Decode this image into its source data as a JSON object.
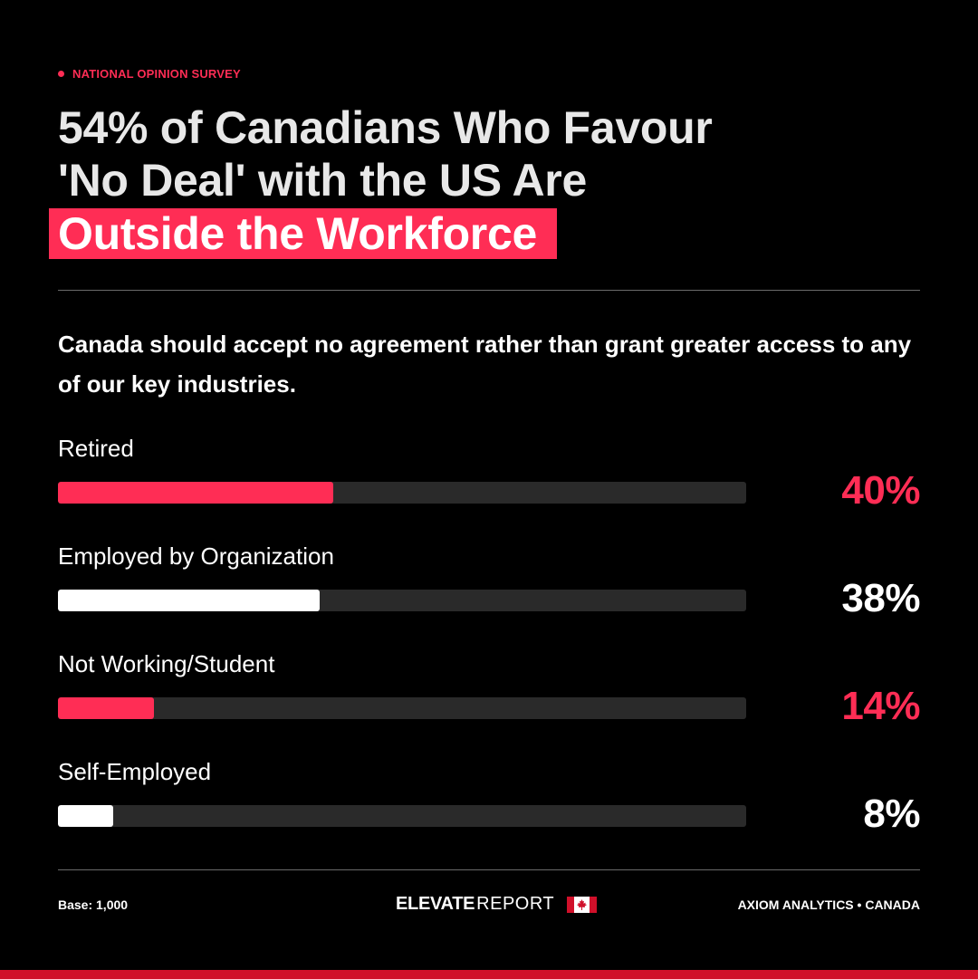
{
  "colors": {
    "accent": "#ff2d55",
    "white": "#ffffff",
    "track": "#2a2a2a",
    "stripe": "#d0102a"
  },
  "eyebrow": "NATIONAL OPINION SURVEY",
  "headline": {
    "line1": "54% of Canadians Who Favour",
    "line2": "'No Deal' with the US Are",
    "highlight": "Outside the Workforce"
  },
  "question": "Canada should accept no agreement rather than grant greater access to any of our key industries.",
  "chart_data": {
    "type": "bar",
    "orientation": "horizontal",
    "categories": [
      "Retired",
      "Employed by Organization",
      "Not Working/Student",
      "Self-Employed"
    ],
    "values": [
      40,
      38,
      14,
      8
    ],
    "value_labels": [
      "40%",
      "38%",
      "14%",
      "8%"
    ],
    "xlim": [
      0,
      100
    ],
    "bar_colors": [
      "#ff2d55",
      "#ffffff",
      "#ff2d55",
      "#ffffff"
    ],
    "grid": false
  },
  "footer": {
    "base": "Base: 1,000",
    "brand_bold": "ELEVATE",
    "brand_light": "REPORT",
    "brand_icon": "canada-flag-icon",
    "source": "AXIOM ANALYTICS • CANADA"
  }
}
